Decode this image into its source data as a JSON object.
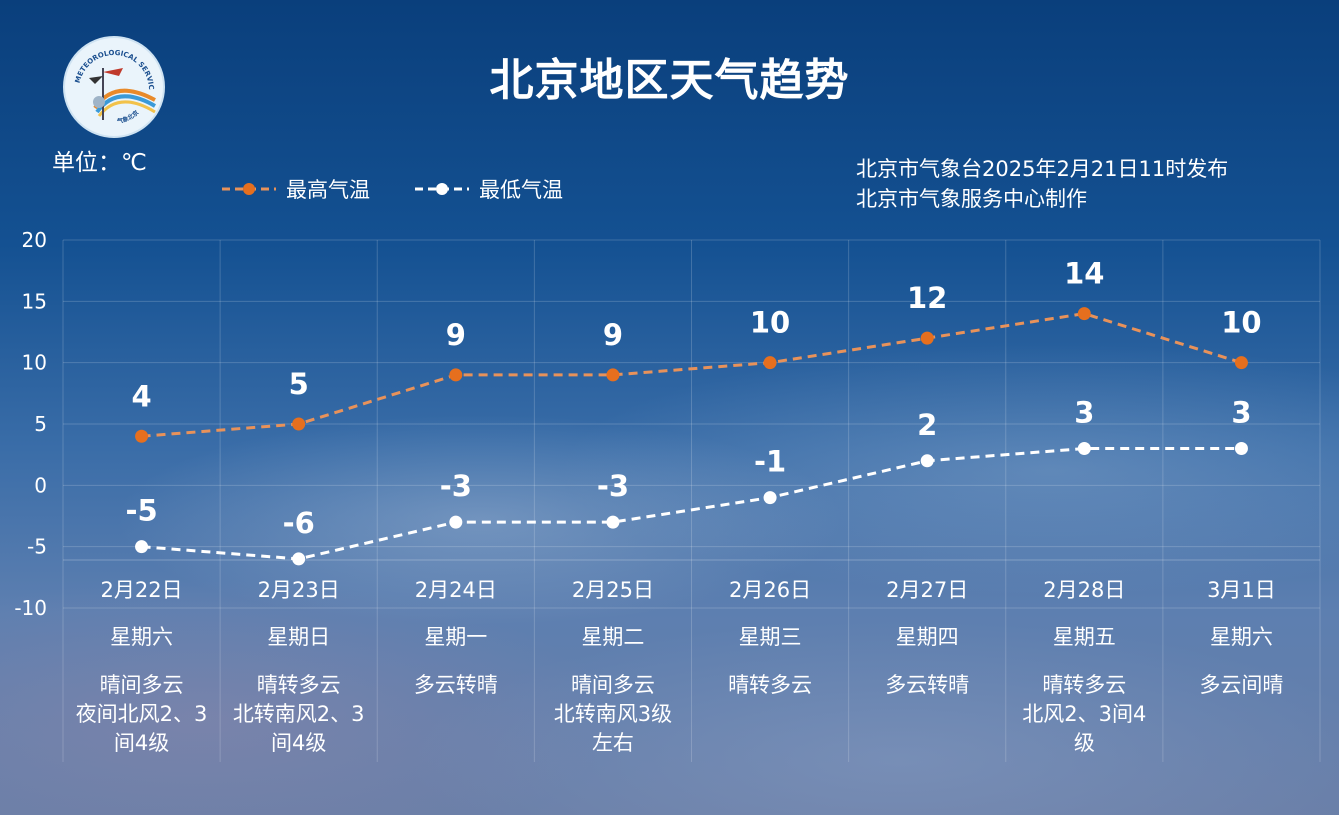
{
  "header": {
    "title": "北京地区天气趋势",
    "unit": "单位：℃",
    "issued": "北京市气象台2025年2月21日11时发布",
    "produced": "北京市气象服务中心制作"
  },
  "logo": {
    "text_top": "METEOROLOGICAL SERVICE",
    "text_bottom": "气象北京"
  },
  "colors": {
    "high": "#e8925a",
    "high_dot": "#e66f1e",
    "low": "#ffffff"
  },
  "chart_data": {
    "type": "line",
    "title": "北京地区天气趋势",
    "ylabel": "单位：℃",
    "ylim": [
      -10,
      20
    ],
    "yticks": [
      20,
      15,
      10,
      5,
      0,
      -5,
      -10
    ],
    "grid": true,
    "legend_position": "top-left",
    "categories": [
      "2月22日",
      "2月23日",
      "2月24日",
      "2月25日",
      "2月26日",
      "2月27日",
      "2月28日",
      "3月1日"
    ],
    "series": [
      {
        "name": "最高气温",
        "values": [
          4,
          5,
          9,
          9,
          10,
          12,
          14,
          10
        ]
      },
      {
        "name": "最低气温",
        "values": [
          -5,
          -6,
          -3,
          -3,
          -1,
          2,
          3,
          3
        ]
      }
    ],
    "weekdays": [
      "星期六",
      "星期日",
      "星期一",
      "星期二",
      "星期三",
      "星期四",
      "星期五",
      "星期六"
    ],
    "weather": [
      [
        "晴间多云",
        "夜间北风2、3",
        "间4级"
      ],
      [
        "晴转多云",
        "北转南风2、3",
        "间4级"
      ],
      [
        "多云转晴"
      ],
      [
        "晴间多云",
        "北转南风3级",
        "左右"
      ],
      [
        "晴转多云"
      ],
      [
        "多云转晴"
      ],
      [
        "晴转多云",
        "北风2、3间4",
        "级"
      ],
      [
        "多云间晴"
      ]
    ]
  }
}
